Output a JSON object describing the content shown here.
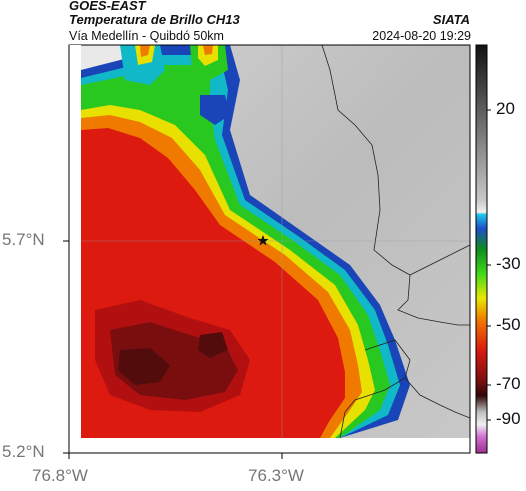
{
  "header": {
    "satellite": "GOES-EAST",
    "product": "Temperatura de Brillo CH13",
    "route": "Vía Medellín - Quibdó 50km",
    "organization": "SIATA",
    "datetime": "2024-08-20 19:29"
  },
  "axes": {
    "lat_ticks": [
      "5.7°N",
      "5.2°N"
    ],
    "lon_ticks": [
      "76.8°W",
      "76.3°W"
    ]
  },
  "colorbar": {
    "ticks": [
      "20",
      "-30",
      "-50",
      "-70",
      "-90"
    ],
    "tick_values": [
      20,
      -30,
      -50,
      -70,
      -90
    ]
  },
  "marker": {
    "icon": "star-icon"
  },
  "colors": {
    "warm_gray": "#bdbdbd",
    "cold_red": "#dd1a10",
    "coldest_dark": "#5a0f0f",
    "green": "#22c41a",
    "yellow": "#e6e600",
    "blue": "#0a4bbd"
  }
}
